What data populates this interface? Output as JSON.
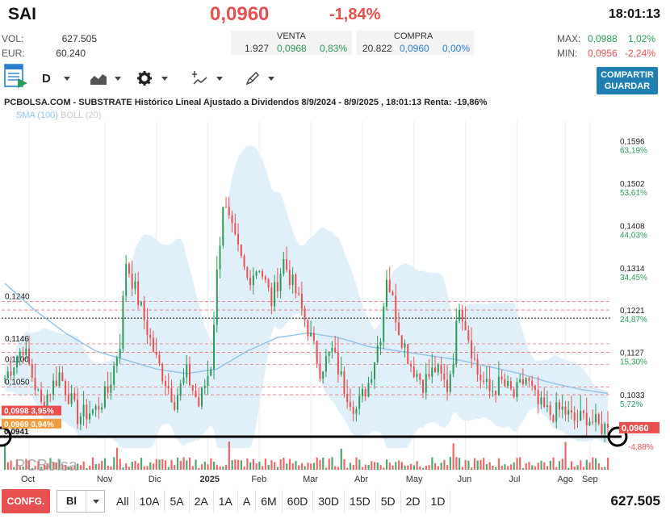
{
  "header": {
    "ticker": "SAI",
    "price": "0,0960",
    "change_pct": "-1,84%",
    "time": "18:01:13"
  },
  "stats": {
    "vol_label": "VOL:",
    "vol_value": "627.505",
    "eur_label": "EUR:",
    "eur_value": "60.240",
    "max_label": "MAX:",
    "max_value": "0,0988",
    "max_pct": "1,02%",
    "min_label": "MIN:",
    "min_value": "0,0956",
    "min_pct": "-2,24%"
  },
  "quotes": {
    "venta_label": "VENTA",
    "venta_qty": "1.927",
    "venta_price": "0,0968",
    "venta_pct": "0,83%",
    "compra_label": "COMPRA",
    "compra_qty": "20.822",
    "compra_price": "0,0960",
    "compra_pct": "0,00%"
  },
  "toolbar": {
    "period": "D",
    "share_label_1": "COMPARTIR",
    "share_label_2": "GUARDAR"
  },
  "chart": {
    "title": "PCBOLSA.COM - SUBSTRATE Histórico Lineal Ajustado a Dividendos 8/9/2024 - 8/9/2025 , 18:01:13 Renta: -19,86%",
    "legend_sma": "SMA (100)",
    "legend_boll": "BOLL (20)",
    "watermark": "PCBolsa",
    "current_price_tag": "0,0960",
    "current_pct_tag": "-4,88%",
    "left_tag_1_price": "0,0998",
    "left_tag_1_pct": "3,95%",
    "left_tag_2_price": "0,0969",
    "left_tag_2_pct": "0,94%",
    "left_tag_3_price": "0,0941"
  },
  "chart_data": {
    "type": "candlestick",
    "x_labels": [
      "Oct",
      "Nov",
      "Dic",
      "2025",
      "Feb",
      "Mar",
      "Abr",
      "May",
      "Jun",
      "Jul",
      "Ago",
      "Sep"
    ],
    "y_right_ticks": [
      {
        "price": "0,1596",
        "pct": "63,19%",
        "value": 0.1596
      },
      {
        "price": "0,1502",
        "pct": "53,61%",
        "value": 0.1502
      },
      {
        "price": "0,1408",
        "pct": "44,03%",
        "value": 0.1408
      },
      {
        "price": "0,1314",
        "pct": "34,45%",
        "value": 0.1314
      },
      {
        "price": "0,1221",
        "pct": "24,87%",
        "value": 0.1221
      },
      {
        "price": "0,1127",
        "pct": "15,30%",
        "value": 0.1127
      },
      {
        "price": "0,1033",
        "pct": "5,72%",
        "value": 0.1033
      }
    ],
    "y_left_levels": [
      {
        "label": "0,1240",
        "value": 0.124
      },
      {
        "label": "0,1146",
        "value": 0.1146
      },
      {
        "label": "0,1100",
        "value": 0.11
      },
      {
        "label": "0,1050",
        "value": 0.105
      }
    ],
    "ylim": [
      0.0915,
      0.164
    ],
    "reference_line": 0.1203,
    "support_line": 0.094,
    "trend": [
      [
        0,
        0.107
      ],
      [
        6,
        0.114
      ],
      [
        12,
        0.101
      ],
      [
        18,
        0.108
      ],
      [
        24,
        0.0985
      ],
      [
        30,
        0.1
      ],
      [
        34,
        0.104
      ],
      [
        38,
        0.115
      ],
      [
        40,
        0.133
      ],
      [
        46,
        0.12
      ],
      [
        50,
        0.111
      ],
      [
        56,
        0.102
      ],
      [
        60,
        0.108
      ],
      [
        64,
        0.101
      ],
      [
        68,
        0.11
      ],
      [
        70,
        0.13
      ],
      [
        72,
        0.146
      ],
      [
        76,
        0.137
      ],
      [
        80,
        0.129
      ],
      [
        84,
        0.132
      ],
      [
        88,
        0.124
      ],
      [
        92,
        0.133
      ],
      [
        96,
        0.126
      ],
      [
        100,
        0.118
      ],
      [
        104,
        0.109
      ],
      [
        108,
        0.113
      ],
      [
        112,
        0.105
      ],
      [
        116,
        0.1
      ],
      [
        120,
        0.106
      ],
      [
        124,
        0.117
      ],
      [
        126,
        0.13
      ],
      [
        130,
        0.118
      ],
      [
        134,
        0.11
      ],
      [
        138,
        0.106
      ],
      [
        142,
        0.109
      ],
      [
        146,
        0.105
      ],
      [
        148,
        0.112
      ],
      [
        150,
        0.124
      ],
      [
        152,
        0.119
      ],
      [
        156,
        0.108
      ],
      [
        160,
        0.104
      ],
      [
        164,
        0.106
      ],
      [
        168,
        0.103
      ],
      [
        172,
        0.107
      ],
      [
        176,
        0.101
      ],
      [
        180,
        0.099
      ],
      [
        184,
        0.1
      ],
      [
        188,
        0.0975
      ],
      [
        192,
        0.0985
      ],
      [
        196,
        0.0962
      ],
      [
        199,
        0.096
      ]
    ],
    "sma": [
      [
        0,
        0.128
      ],
      [
        10,
        0.122
      ],
      [
        20,
        0.117
      ],
      [
        30,
        0.113
      ],
      [
        40,
        0.111
      ],
      [
        50,
        0.109
      ],
      [
        60,
        0.108
      ],
      [
        70,
        0.109
      ],
      [
        80,
        0.113
      ],
      [
        90,
        0.116
      ],
      [
        100,
        0.117
      ],
      [
        110,
        0.116
      ],
      [
        120,
        0.114
      ],
      [
        130,
        0.113
      ],
      [
        140,
        0.112
      ],
      [
        150,
        0.111
      ],
      [
        160,
        0.1095
      ],
      [
        170,
        0.108
      ],
      [
        180,
        0.106
      ],
      [
        190,
        0.1045
      ],
      [
        199,
        0.1036
      ]
    ],
    "colors": {
      "up": "#2b9a5a",
      "down": "#e8504f",
      "band": "#d6ebf8",
      "sma": "#8fc3e8"
    }
  },
  "bottom": {
    "config_label": "CONFG.",
    "chart_type": "Bl",
    "ranges": [
      "All",
      "10A",
      "5A",
      "2A",
      "1A",
      "A",
      "6M",
      "60D",
      "30D",
      "15D",
      "5D",
      "2D",
      "1D"
    ],
    "volume_total": "627.505"
  }
}
